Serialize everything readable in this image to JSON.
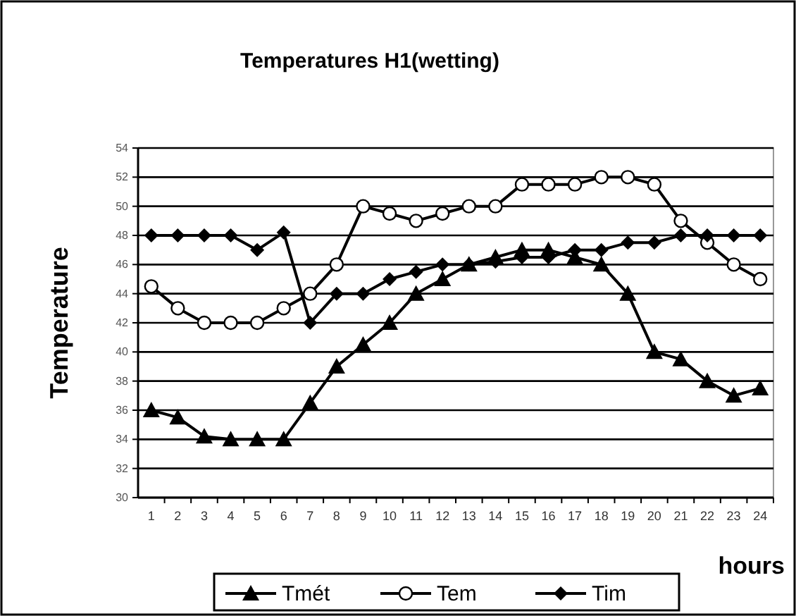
{
  "chart_data": {
    "type": "line",
    "title": "Temperatures H1(wetting)",
    "xlabel": "hours",
    "ylabel": "Temperature",
    "x": [
      1,
      2,
      3,
      4,
      5,
      6,
      7,
      8,
      9,
      10,
      11,
      12,
      13,
      14,
      15,
      16,
      17,
      18,
      19,
      20,
      21,
      22,
      23,
      24
    ],
    "xlim": [
      0.5,
      24.5
    ],
    "xticks": [
      1,
      2,
      3,
      4,
      5,
      6,
      7,
      8,
      9,
      10,
      11,
      12,
      13,
      14,
      15,
      16,
      17,
      18,
      19,
      20,
      21,
      22,
      23,
      24
    ],
    "series": [
      {
        "name": "Tmét",
        "color": "#000000",
        "marker": "triangle",
        "values": [
          36,
          35.5,
          34.2,
          34,
          34,
          34,
          36.5,
          39,
          40.5,
          42,
          44,
          45,
          46,
          46.5,
          47,
          47,
          46.5,
          46,
          44,
          40,
          39.5,
          38,
          37,
          37.5
        ]
      },
      {
        "name": "Tem",
        "color": "#000000",
        "marker": "circle",
        "values": [
          44.5,
          43,
          42,
          42,
          42,
          43,
          44,
          46,
          50,
          49.5,
          49,
          49.5,
          50,
          50,
          51.5,
          51.5,
          51.5,
          52,
          52,
          51.5,
          49,
          47.5,
          46,
          45
        ]
      },
      {
        "name": "Tim",
        "color": "#000000",
        "marker": "diamond",
        "values": [
          48,
          48,
          48,
          48,
          47,
          48.2,
          42,
          44,
          44,
          45,
          45.5,
          46,
          46,
          46.2,
          46.5,
          46.5,
          47,
          47,
          47.5,
          47.5,
          48,
          48,
          48,
          48
        ]
      }
    ],
    "ylim": [
      30,
      54
    ],
    "yticks": [
      30,
      32,
      34,
      36,
      38,
      40,
      42,
      44,
      46,
      48,
      50,
      52,
      54
    ],
    "grid": "y",
    "legend": "bottom"
  }
}
